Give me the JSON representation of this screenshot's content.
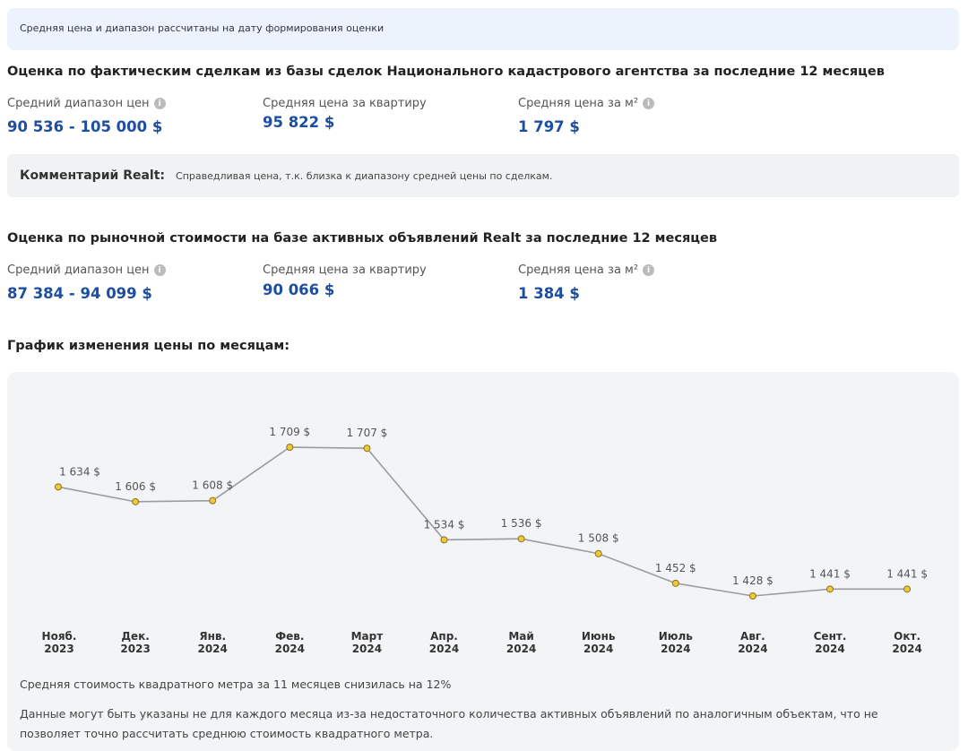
{
  "notice": "Средняя цена и диапазон рассчитаны на дату формирования оценки",
  "deals": {
    "title": "Оценка по фактическим сделкам из базы сделок Национального кадастрового агентства за последние 12 месяцев",
    "range_label": "Средний диапазон цен",
    "range_value": "90 536 - 105 000 $",
    "flat_label": "Средняя цена за квартиру",
    "flat_value": "95 822 $",
    "sqm_label": "Средняя цена за м²",
    "sqm_value": "1 797 $"
  },
  "comment": {
    "title": "Комментарий Realt:",
    "text": "Справедливая цена, т.к. близка к диапазону средней цены по сделкам."
  },
  "market": {
    "title": "Оценка по рыночной стоимости на базе активных объявлений Realt за последние 12 месяцев",
    "range_label": "Средний диапазон цен",
    "range_value": "87 384 - 94 099 $",
    "flat_label": "Средняя цена за квартиру",
    "flat_value": "90 066 $",
    "sqm_label": "Средняя цена за м²",
    "sqm_value": "1 384 $"
  },
  "chart_title": "График изменения цены по месяцам:",
  "chart_data": {
    "type": "line",
    "title": "График изменения цены по месяцам:",
    "categories": [
      [
        "Нояб.",
        "2023"
      ],
      [
        "Дек.",
        "2023"
      ],
      [
        "Янв.",
        "2024"
      ],
      [
        "Фев.",
        "2024"
      ],
      [
        "Март",
        "2024"
      ],
      [
        "Апр.",
        "2024"
      ],
      [
        "Май",
        "2024"
      ],
      [
        "Июнь",
        "2024"
      ],
      [
        "Июль",
        "2024"
      ],
      [
        "Авг.",
        "2024"
      ],
      [
        "Сент.",
        "2024"
      ],
      [
        "Окт.",
        "2024"
      ]
    ],
    "values": [
      1634,
      1606,
      1608,
      1709,
      1707,
      1534,
      1536,
      1508,
      1452,
      1428,
      1441,
      1441
    ],
    "labels": [
      "1 634 $",
      "1 606 $",
      "1 608 $",
      "1 709 $",
      "1 707 $",
      "1 534 $",
      "1 536 $",
      "1 508 $",
      "1 452 $",
      "1 428 $",
      "1 441 $",
      "1 441 $"
    ],
    "line_color": "#9a9ca3",
    "point_color": "#f0c93a"
  },
  "note1": "Средняя стоимость квадратного метра за 11 месяцев снизилась на 12%",
  "note2": "Данные могут быть указаны не для каждого месяца из-за недостаточного количества активных объявлений по аналогичным объектам, что не позволяет точно рассчитать среднюю стоимость квадратного метра."
}
